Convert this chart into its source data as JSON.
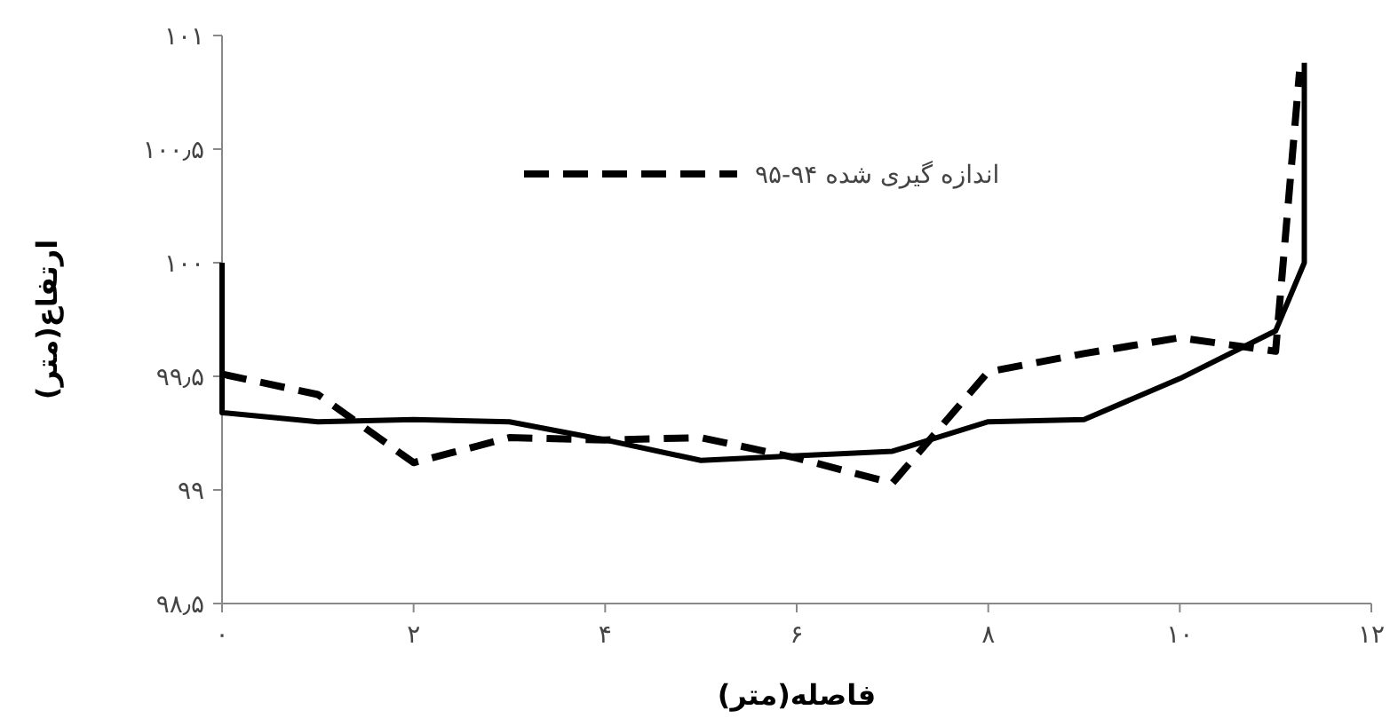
{
  "chart_data": {
    "type": "line",
    "xlabel": "فاصله(متر)",
    "ylabel": "ارتفاع(متر)",
    "xlim": [
      0,
      12
    ],
    "ylim": [
      98.5,
      101
    ],
    "xticks": [
      {
        "value": 0,
        "label": "۰"
      },
      {
        "value": 2,
        "label": "۲"
      },
      {
        "value": 4,
        "label": "۴"
      },
      {
        "value": 6,
        "label": "۶"
      },
      {
        "value": 8,
        "label": "۸"
      },
      {
        "value": 10,
        "label": "۱۰"
      },
      {
        "value": 12,
        "label": "۱۲"
      }
    ],
    "yticks": [
      {
        "value": 98.5,
        "label": "۹۸٫۵"
      },
      {
        "value": 99,
        "label": "۹۹"
      },
      {
        "value": 99.5,
        "label": "۹۹٫۵"
      },
      {
        "value": 100,
        "label": "۱۰۰"
      },
      {
        "value": 100.5,
        "label": "۱۰۰٫۵"
      },
      {
        "value": 101,
        "label": "۱۰۱"
      }
    ],
    "legend": "top",
    "grid": false,
    "marker": "none",
    "series": [
      {
        "color": "#000000",
        "line_style": "solid",
        "x": [
          0,
          0,
          1,
          2,
          3,
          4,
          5,
          6,
          7,
          8,
          9,
          10,
          11,
          11.3,
          11.3
        ],
        "values": [
          100,
          99.34,
          99.3,
          99.31,
          99.3,
          99.22,
          99.13,
          99.15,
          99.17,
          99.3,
          99.31,
          99.49,
          99.7,
          100,
          100.88
        ]
      },
      {
        "name": "اندازه گیری شده ۹۴-۹۵",
        "color": "#000000",
        "line_style": "dashed",
        "x": [
          0,
          1,
          2,
          3,
          4,
          5,
          6,
          7,
          8,
          9,
          10,
          11,
          11.25
        ],
        "values": [
          99.51,
          99.42,
          99.12,
          99.23,
          99.22,
          99.23,
          99.14,
          99.03,
          99.52,
          99.6,
          99.67,
          99.61,
          100.84
        ]
      }
    ]
  }
}
